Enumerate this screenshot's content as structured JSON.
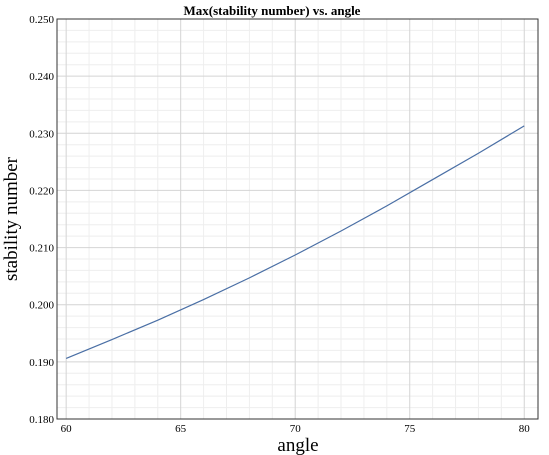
{
  "chart_data": {
    "type": "line",
    "title": "Max(stability number) vs. angle",
    "xlabel": "angle",
    "ylabel": "stability number",
    "xlim": [
      59.6,
      80.6
    ],
    "ylim": [
      0.18,
      0.25
    ],
    "xticks": [
      60,
      65,
      70,
      75,
      80
    ],
    "xtick_labels": [
      "60",
      "65",
      "70",
      "75",
      "80"
    ],
    "yticks": [
      0.18,
      0.19,
      0.2,
      0.21,
      0.22,
      0.23,
      0.24,
      0.25
    ],
    "ytick_labels": [
      "0.180",
      "0.190",
      "0.200",
      "0.210",
      "0.220",
      "0.230",
      "0.240",
      "0.250"
    ],
    "grid": true,
    "minor_grid": true,
    "line_color": "#4a6fa5",
    "series": [
      {
        "x": [
          60,
          62,
          64,
          66,
          68,
          70,
          72,
          74,
          76,
          78,
          80
        ],
        "y": [
          0.1906,
          0.1939,
          0.1973,
          0.2009,
          0.2047,
          0.2087,
          0.2129,
          0.2173,
          0.2219,
          0.2265,
          0.2313
        ]
      }
    ]
  }
}
